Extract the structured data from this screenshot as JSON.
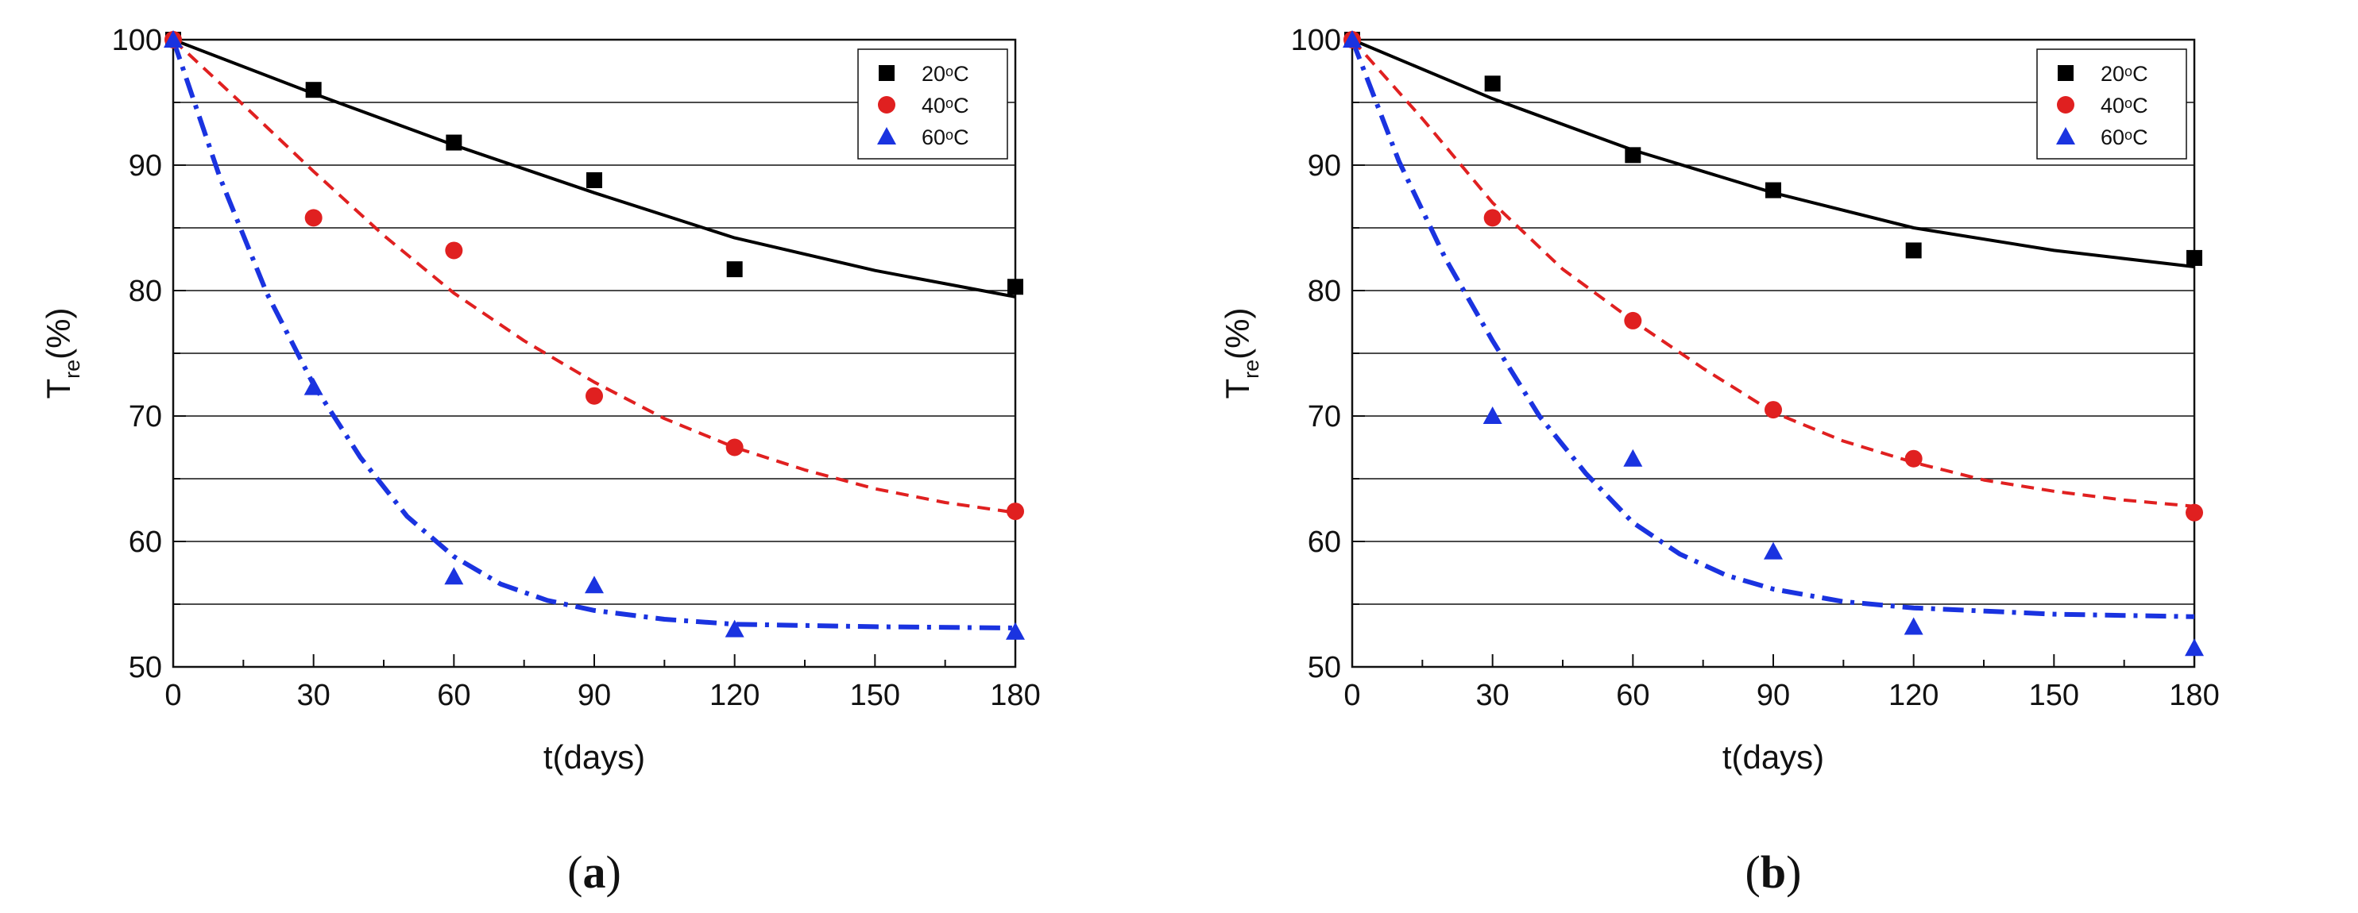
{
  "chart_data": [
    {
      "type": "scatter",
      "panel_label_parts": [
        "(",
        "a",
        ")"
      ],
      "xlabel": "t(days)",
      "ylabel_main": "T",
      "ylabel_sub": "re",
      "ylabel_suffix": "(%)",
      "xlim": [
        0,
        180
      ],
      "ylim": [
        50,
        100
      ],
      "xticks": [
        0,
        30,
        60,
        90,
        120,
        150,
        180
      ],
      "yticks": [
        50,
        60,
        70,
        80,
        90,
        100
      ],
      "grid": "horizontal",
      "legend_position": "top-right",
      "series": [
        {
          "name": "20°C",
          "label_prefix": "20",
          "label_suffix": "C",
          "marker": "square",
          "line": "solid",
          "color": "#000000",
          "x": [
            0,
            30,
            60,
            90,
            120,
            180
          ],
          "y": [
            100,
            96,
            91.8,
            88.8,
            81.7,
            80.3
          ],
          "fit": {
            "x": [
              0,
              30,
              60,
              90,
              120,
              150,
              180
            ],
            "y": [
              100,
              95.7,
              91.6,
              87.8,
              84.2,
              81.6,
              79.5
            ]
          }
        },
        {
          "name": "40°C",
          "label_prefix": "40",
          "label_suffix": "C",
          "marker": "circle",
          "line": "dashed",
          "color": "#e02020",
          "x": [
            0,
            30,
            60,
            90,
            120,
            180
          ],
          "y": [
            100,
            85.8,
            83.2,
            71.6,
            67.5,
            62.4
          ],
          "fit": {
            "x": [
              0,
              15,
              30,
              45,
              60,
              75,
              90,
              105,
              120,
              135,
              150,
              165,
              180
            ],
            "y": [
              100,
              94.8,
              89.5,
              84.4,
              79.8,
              76,
              72.7,
              69.8,
              67.5,
              65.7,
              64.2,
              63.1,
              62.3
            ]
          }
        },
        {
          "name": "60°C",
          "label_prefix": "60",
          "label_suffix": "C",
          "marker": "triangle",
          "line": "dashdot",
          "color": "#1a33e0",
          "x": [
            0,
            30,
            60,
            90,
            120,
            180
          ],
          "y": [
            100,
            72.3,
            57.2,
            56.5,
            53,
            52.8
          ],
          "fit": {
            "x": [
              0,
              10,
              20,
              30,
              40,
              50,
              60,
              70,
              80,
              90,
              105,
              120,
              150,
              180
            ],
            "y": [
              100,
              89,
              79.8,
              72.5,
              66.7,
              62,
              58.8,
              56.6,
              55.3,
              54.5,
              53.8,
              53.4,
              53.2,
              53.1
            ]
          }
        }
      ]
    },
    {
      "type": "scatter",
      "panel_label_parts": [
        "(",
        "b",
        ")"
      ],
      "xlabel": "t(days)",
      "ylabel_main": "T",
      "ylabel_sub": "re",
      "ylabel_suffix": "(%)",
      "xlim": [
        0,
        180
      ],
      "ylim": [
        50,
        100
      ],
      "xticks": [
        0,
        30,
        60,
        90,
        120,
        150,
        180
      ],
      "yticks": [
        50,
        60,
        70,
        80,
        90,
        100
      ],
      "grid": "horizontal",
      "legend_position": "top-right",
      "series": [
        {
          "name": "20°C",
          "label_prefix": "20",
          "label_suffix": "C",
          "marker": "square",
          "line": "solid",
          "color": "#000000",
          "x": [
            0,
            30,
            60,
            90,
            120,
            180
          ],
          "y": [
            100,
            96.5,
            90.8,
            88,
            83.2,
            82.6
          ],
          "fit": {
            "x": [
              0,
              30,
              60,
              90,
              120,
              150,
              180
            ],
            "y": [
              100,
              95.3,
              91.2,
              87.8,
              85,
              83.2,
              81.9
            ]
          }
        },
        {
          "name": "40°C",
          "label_prefix": "40",
          "label_suffix": "C",
          "marker": "circle",
          "line": "dashed",
          "color": "#e02020",
          "x": [
            0,
            30,
            60,
            90,
            120,
            180
          ],
          "y": [
            100,
            85.8,
            77.6,
            70.5,
            66.6,
            62.3
          ],
          "fit": {
            "x": [
              0,
              15,
              30,
              45,
              60,
              75,
              90,
              105,
              120,
              135,
              150,
              165,
              180
            ],
            "y": [
              100,
              93.7,
              87,
              81.7,
              77.6,
              73.8,
              70.3,
              68,
              66.3,
              64.9,
              64,
              63.3,
              62.8
            ]
          }
        },
        {
          "name": "60°C",
          "label_prefix": "60",
          "label_suffix": "C",
          "marker": "triangle",
          "line": "dashdot",
          "color": "#1a33e0",
          "x": [
            0,
            30,
            60,
            90,
            120,
            180
          ],
          "y": [
            100,
            70,
            66.6,
            59.2,
            53.2,
            51.5
          ],
          "fit": {
            "x": [
              0,
              10,
              20,
              30,
              40,
              50,
              60,
              70,
              80,
              90,
              105,
              120,
              150,
              180
            ],
            "y": [
              100,
              90.3,
              82.5,
              76,
              70,
              65.4,
              61.5,
              59,
              57.3,
              56.2,
              55.2,
              54.7,
              54.2,
              54
            ]
          }
        }
      ]
    }
  ]
}
